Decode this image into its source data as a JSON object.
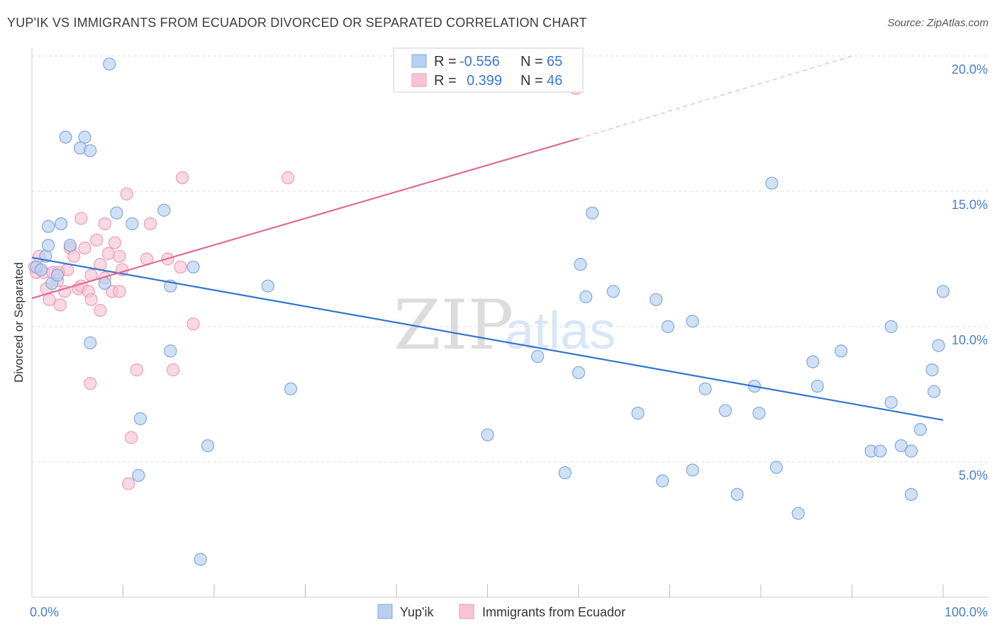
{
  "title": "YUP'IK VS IMMIGRANTS FROM ECUADOR DIVORCED OR SEPARATED CORRELATION CHART",
  "source": "Source: ZipAtlas.com",
  "watermark": {
    "zip": "ZIP",
    "atlas": "atlas"
  },
  "colors": {
    "blue_fill": "#b7d0f0",
    "blue_stroke": "#7fa8dd",
    "blue_line": "#3275d0",
    "pink_fill": "#f8c4d4",
    "pink_stroke": "#ec9ab5",
    "pink_line": "#e06c96",
    "tick_text": "#4a7fc9",
    "grid": "#dddddd"
  },
  "legend_top": {
    "rows": [
      {
        "r_label": "R =",
        "r_value": "-0.556",
        "n_label": "N =",
        "n_value": "65"
      },
      {
        "r_label": "R =",
        "r_value": "0.399",
        "n_label": "N =",
        "n_value": "46"
      }
    ]
  },
  "chart_data": {
    "type": "scatter",
    "title": "YUP'IK VS IMMIGRANTS FROM ECUADOR DIVORCED OR SEPARATED CORRELATION CHART",
    "xlabel": "",
    "ylabel": "Divorced or Separated",
    "xlim": [
      0,
      100
    ],
    "ylim": [
      0,
      20.5
    ],
    "x_tick_labels": [
      "0.0%",
      "100.0%"
    ],
    "y_ticks": [
      5,
      10,
      15,
      20
    ],
    "y_tick_labels": [
      "5.0%",
      "10.0%",
      "15.0%",
      "20.0%"
    ],
    "grid": true,
    "legend_position": "bottom",
    "series": [
      {
        "name": "Yup'ik",
        "R": -0.556,
        "N": 65,
        "trend": {
          "x": [
            0,
            100
          ],
          "y": [
            12.55,
            6.55
          ],
          "dashed_to": null
        },
        "points": [
          [
            0.5,
            12.2
          ],
          [
            1.8,
            13.7
          ],
          [
            1.5,
            12.6
          ],
          [
            1.8,
            13.0
          ],
          [
            2.2,
            11.6
          ],
          [
            2.8,
            11.9
          ],
          [
            3.2,
            13.8
          ],
          [
            3.7,
            17.0
          ],
          [
            4.2,
            13.0
          ],
          [
            5.3,
            16.6
          ],
          [
            5.8,
            17.0
          ],
          [
            6.4,
            9.4
          ],
          [
            6.4,
            16.5
          ],
          [
            8.0,
            11.6
          ],
          [
            8.5,
            19.7
          ],
          [
            9.3,
            14.2
          ],
          [
            11.0,
            13.8
          ],
          [
            11.7,
            4.5
          ],
          [
            11.9,
            6.6
          ],
          [
            14.5,
            14.3
          ],
          [
            15.2,
            9.1
          ],
          [
            15.2,
            11.5
          ],
          [
            17.7,
            12.2
          ],
          [
            18.5,
            1.4
          ],
          [
            19.3,
            5.6
          ],
          [
            25.9,
            11.5
          ],
          [
            28.4,
            7.7
          ],
          [
            50.0,
            6.0
          ],
          [
            55.5,
            8.9
          ],
          [
            58.5,
            4.6
          ],
          [
            60.0,
            8.3
          ],
          [
            60.2,
            12.3
          ],
          [
            60.8,
            11.1
          ],
          [
            61.5,
            14.2
          ],
          [
            63.8,
            11.3
          ],
          [
            66.5,
            6.8
          ],
          [
            68.5,
            11.0
          ],
          [
            69.2,
            4.3
          ],
          [
            69.8,
            10.0
          ],
          [
            72.5,
            4.7
          ],
          [
            72.5,
            10.2
          ],
          [
            73.9,
            7.7
          ],
          [
            76.1,
            6.9
          ],
          [
            77.4,
            3.8
          ],
          [
            79.3,
            7.8
          ],
          [
            79.8,
            6.8
          ],
          [
            81.2,
            15.3
          ],
          [
            81.7,
            4.8
          ],
          [
            84.1,
            3.1
          ],
          [
            85.7,
            8.7
          ],
          [
            86.2,
            7.8
          ],
          [
            88.8,
            9.1
          ],
          [
            92.1,
            5.4
          ],
          [
            93.1,
            5.4
          ],
          [
            94.3,
            7.2
          ],
          [
            94.3,
            10.0
          ],
          [
            95.4,
            5.6
          ],
          [
            96.5,
            5.4
          ],
          [
            96.5,
            3.8
          ],
          [
            97.5,
            6.2
          ],
          [
            98.8,
            8.4
          ],
          [
            99.0,
            7.6
          ],
          [
            99.5,
            9.3
          ],
          [
            100,
            11.3
          ],
          [
            1.0,
            12.1
          ]
        ]
      },
      {
        "name": "Immigrants from Ecuador",
        "R": 0.399,
        "N": 46,
        "trend": {
          "x": [
            0,
            60
          ],
          "y": [
            11.05,
            16.95
          ],
          "dashed_to": [
            90,
            20.0
          ]
        },
        "points": [
          [
            0.3,
            12.2
          ],
          [
            0.5,
            12.0
          ],
          [
            0.8,
            12.6
          ],
          [
            1.3,
            12.0
          ],
          [
            1.6,
            11.4
          ],
          [
            1.9,
            11.0
          ],
          [
            2.3,
            12.0
          ],
          [
            2.8,
            11.7
          ],
          [
            3.1,
            10.8
          ],
          [
            3.6,
            11.3
          ],
          [
            3.9,
            12.1
          ],
          [
            4.2,
            12.9
          ],
          [
            4.6,
            12.6
          ],
          [
            5.1,
            11.4
          ],
          [
            5.4,
            11.5
          ],
          [
            5.4,
            14.0
          ],
          [
            5.8,
            12.9
          ],
          [
            6.2,
            11.3
          ],
          [
            6.5,
            11.0
          ],
          [
            6.5,
            11.9
          ],
          [
            7.1,
            13.2
          ],
          [
            7.5,
            12.3
          ],
          [
            7.5,
            10.6
          ],
          [
            8.0,
            11.8
          ],
          [
            8.0,
            13.8
          ],
          [
            8.4,
            12.7
          ],
          [
            8.8,
            11.3
          ],
          [
            9.1,
            13.1
          ],
          [
            9.6,
            11.3
          ],
          [
            9.6,
            12.6
          ],
          [
            9.9,
            12.1
          ],
          [
            10.4,
            14.9
          ],
          [
            10.9,
            5.9
          ],
          [
            11.5,
            8.4
          ],
          [
            12.6,
            12.5
          ],
          [
            13.0,
            13.8
          ],
          [
            14.9,
            12.5
          ],
          [
            15.5,
            8.4
          ],
          [
            16.3,
            12.2
          ],
          [
            16.5,
            15.5
          ],
          [
            17.7,
            10.1
          ],
          [
            28.1,
            15.5
          ],
          [
            59.7,
            18.8
          ],
          [
            6.4,
            7.9
          ],
          [
            10.6,
            4.2
          ],
          [
            2.9,
            12.0
          ]
        ]
      }
    ]
  },
  "legend_bottom": [
    "Yup'ik",
    "Immigrants from Ecuador"
  ]
}
